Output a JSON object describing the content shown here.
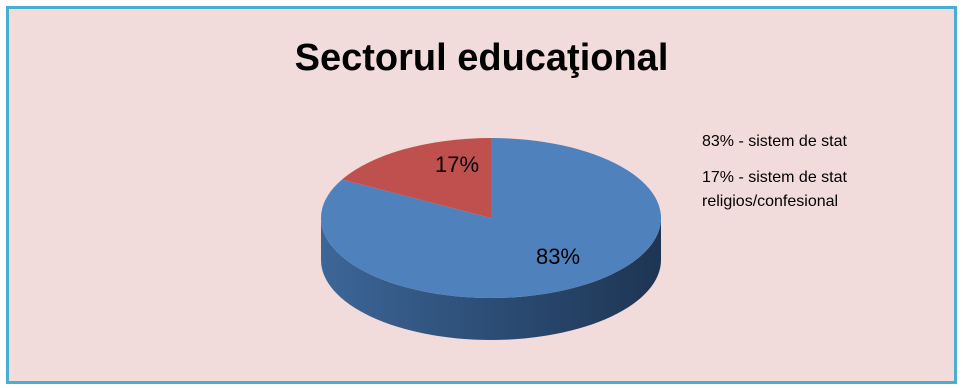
{
  "chart_data": {
    "type": "pie",
    "title": "Sectorul educaţional",
    "categories": [
      "sistem de stat",
      "sistem de stat religios/confesional"
    ],
    "values": [
      83,
      17
    ],
    "slice_labels": [
      "83%",
      "17%"
    ],
    "legend": [
      "83% - sistem de stat",
      "17% - sistem de stat religios/confesional"
    ],
    "legend_position": "right",
    "style": "3d",
    "colors": [
      "#4f81bd",
      "#c0504d"
    ],
    "side_colors": [
      "#2c4d75",
      "#7f2c2a"
    ]
  },
  "colors": {
    "background": "#f2dcdb",
    "border": "#4aaed1"
  }
}
